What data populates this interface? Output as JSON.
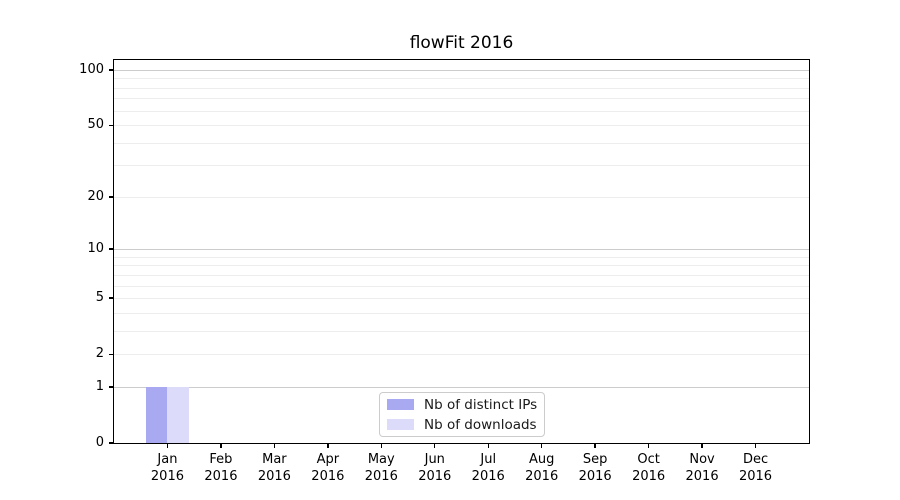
{
  "chart_data": {
    "type": "bar",
    "title": "flowFit 2016",
    "categories": [
      "Jan",
      "Feb",
      "Mar",
      "Apr",
      "May",
      "Jun",
      "Jul",
      "Aug",
      "Sep",
      "Oct",
      "Nov",
      "Dec"
    ],
    "x_year_label": "2016",
    "series": [
      {
        "name": "Nb of distinct IPs",
        "color": "#a9a9f2",
        "values": [
          1,
          0,
          0,
          0,
          0,
          0,
          0,
          0,
          0,
          0,
          0,
          0
        ]
      },
      {
        "name": "Nb of downloads",
        "color": "#dcdbf9",
        "values": [
          1,
          0,
          0,
          0,
          0,
          0,
          0,
          0,
          0,
          0,
          0,
          0
        ]
      }
    ],
    "xlabel": "",
    "ylabel": "",
    "y_scale": "log1p",
    "ylim": [
      0,
      100
    ],
    "yticks": [
      0,
      1,
      2,
      5,
      10,
      20,
      50,
      100
    ],
    "major_gridlines": [
      1,
      10,
      100
    ],
    "minor_gridlines": [
      2,
      3,
      4,
      5,
      6,
      7,
      8,
      9,
      20,
      30,
      40,
      50,
      60,
      70,
      80,
      90
    ],
    "grid": "horizontal",
    "legend_position": "lower-center-inside"
  },
  "colors": {
    "axis": "#000000",
    "major_grid": "#cccccc",
    "minor_grid": "#ededed",
    "legend_border": "#cccccc",
    "background": "#ffffff"
  }
}
